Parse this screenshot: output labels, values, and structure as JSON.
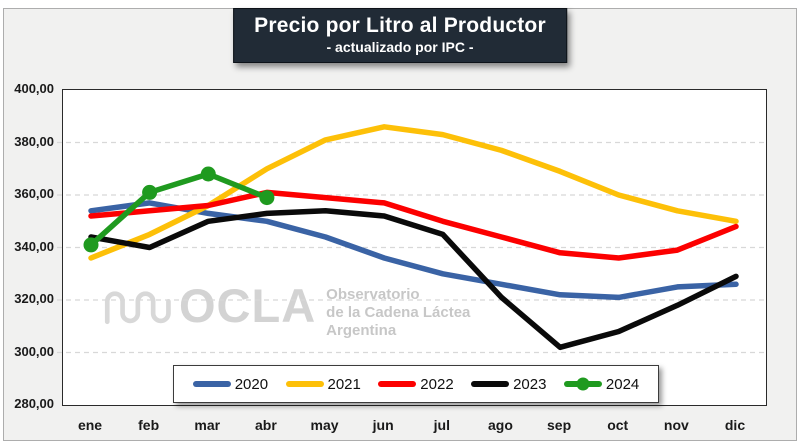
{
  "title": {
    "text": "Precio por Litro al Productor",
    "subtitle": "- actualizado por IPC -",
    "bg_color": "#212b36",
    "fg_color": "#ffffff"
  },
  "watermark": {
    "name": "OCLA",
    "line1": "Observatorio",
    "line2": "de la Cadena Láctea",
    "line3": "Argentina"
  },
  "chart_data": {
    "type": "line",
    "categories": [
      "ene",
      "feb",
      "mar",
      "abr",
      "may",
      "jun",
      "jul",
      "ago",
      "sep",
      "oct",
      "nov",
      "dic"
    ],
    "series": [
      {
        "name": "2020",
        "color": "#3a63a5",
        "marker": false,
        "values": [
          354,
          357,
          353,
          350,
          344,
          336,
          330,
          326,
          322,
          321,
          325,
          326
        ]
      },
      {
        "name": "2021",
        "color": "#fdc008",
        "marker": false,
        "values": [
          336,
          345,
          356,
          370,
          381,
          386,
          383,
          377,
          369,
          360,
          354,
          350
        ]
      },
      {
        "name": "2022",
        "color": "#fc0000",
        "marker": false,
        "values": [
          352,
          354,
          356,
          361,
          359,
          357,
          350,
          344,
          338,
          336,
          339,
          348
        ]
      },
      {
        "name": "2023",
        "color": "#0a0a0a",
        "marker": false,
        "values": [
          344,
          340,
          350,
          353,
          354,
          352,
          345,
          321,
          302,
          308,
          318,
          329
        ]
      },
      {
        "name": "2024",
        "color": "#1f9a1f",
        "marker": true,
        "values": [
          341,
          361,
          368,
          359
        ]
      }
    ],
    "ylim": [
      280,
      400
    ],
    "y_ticks": [
      {
        "v": 400,
        "label": "400,00"
      },
      {
        "v": 380,
        "label": "380,00"
      },
      {
        "v": 360,
        "label": "360,00"
      },
      {
        "v": 340,
        "label": "340,00"
      },
      {
        "v": 320,
        "label": "320,00"
      },
      {
        "v": 300,
        "label": "300,00"
      },
      {
        "v": 280,
        "label": "280,00"
      }
    ],
    "grid": "horizontal-dashed",
    "grid_color": "#d8d8d8",
    "legend_position": "bottom-center",
    "plot_bg": "#ffffff",
    "figure_bg": "#f1f1f0"
  }
}
